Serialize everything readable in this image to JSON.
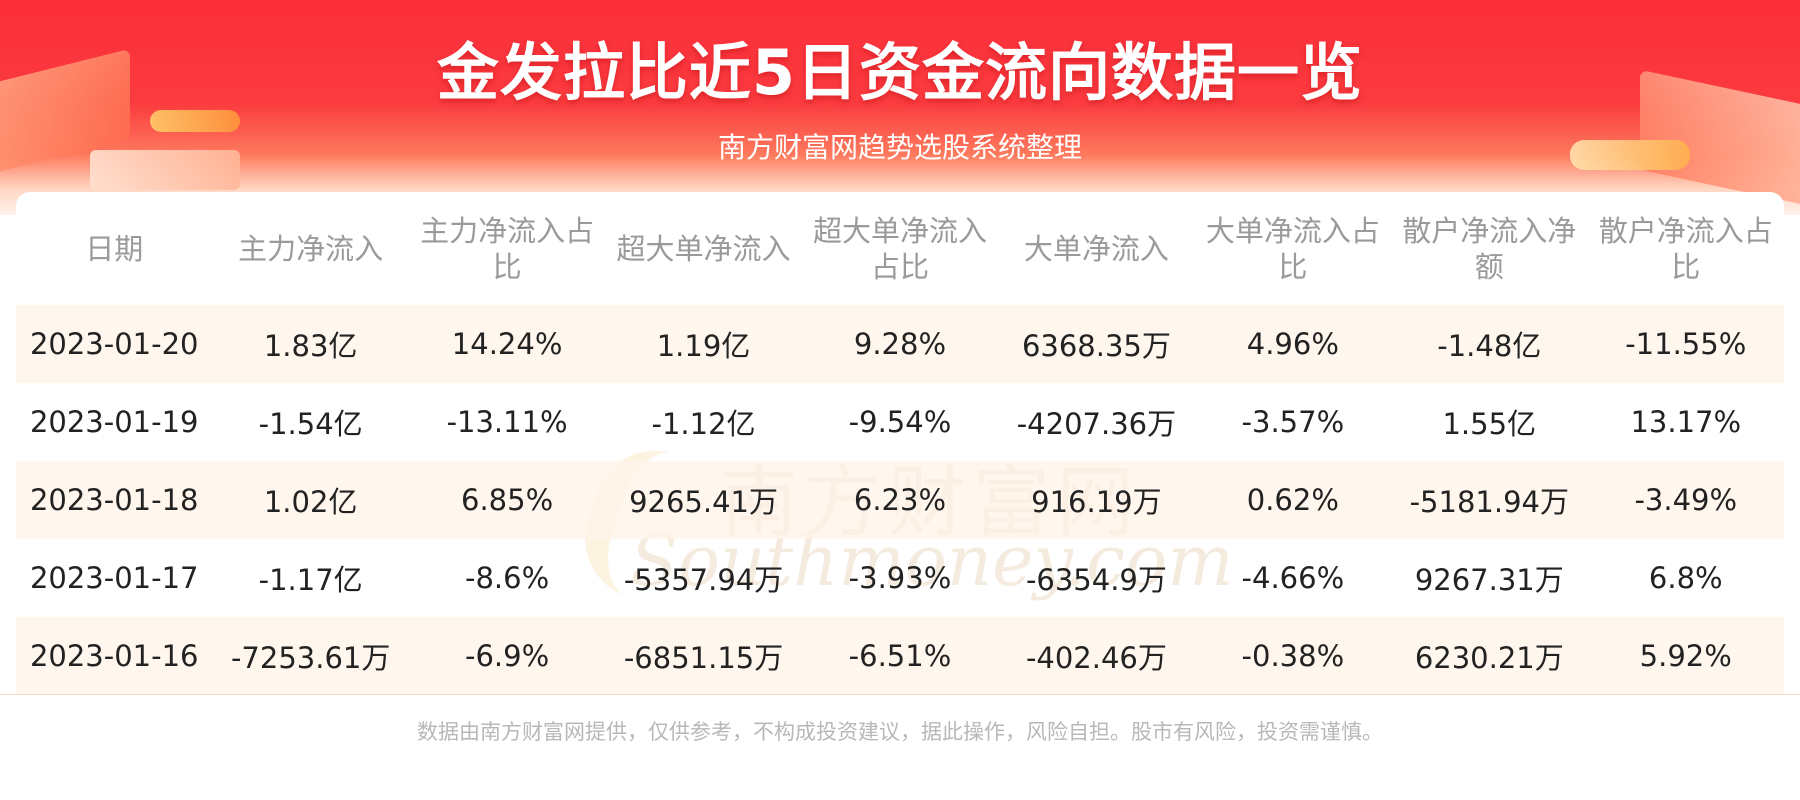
{
  "title": "金发拉比近5日资金流向数据一览",
  "subtitle": "南方财富网趋势选股系统整理",
  "watermark": {
    "cn": "南方财富网",
    "en": "Southmoney.com"
  },
  "table": {
    "headers": [
      "日期",
      "主力净流入",
      "主力净流入占比",
      "超大单净流入",
      "超大单净流入占比",
      "大单净流入",
      "大单净流入占比",
      "散户净流入净额",
      "散户净流入占比"
    ],
    "rows": [
      [
        "2023-01-20",
        "1.83亿",
        "14.24%",
        "1.19亿",
        "9.28%",
        "6368.35万",
        "4.96%",
        "-1.48亿",
        "-11.55%"
      ],
      [
        "2023-01-19",
        "-1.54亿",
        "-13.11%",
        "-1.12亿",
        "-9.54%",
        "-4207.36万",
        "-3.57%",
        "1.55亿",
        "13.17%"
      ],
      [
        "2023-01-18",
        "1.02亿",
        "6.85%",
        "9265.41万",
        "6.23%",
        "916.19万",
        "0.62%",
        "-5181.94万",
        "-3.49%"
      ],
      [
        "2023-01-17",
        "-1.17亿",
        "-8.6%",
        "-5357.94万",
        "-3.93%",
        "-6354.9万",
        "-4.66%",
        "9267.31万",
        "6.8%"
      ],
      [
        "2023-01-16",
        "-7253.61万",
        "-6.9%",
        "-6851.15万",
        "-6.51%",
        "-402.46万",
        "-0.38%",
        "6230.21万",
        "5.92%"
      ]
    ]
  },
  "footer": "数据由南方财富网提供，仅供参考，不构成投资建议，据此操作，风险自担。股市有风险，投资需谨慎。",
  "colors": {
    "header_red": "#fb2e3a",
    "stripe": "#fff4e8",
    "header_text": "#9a9a9a",
    "cell_text": "#222222"
  }
}
